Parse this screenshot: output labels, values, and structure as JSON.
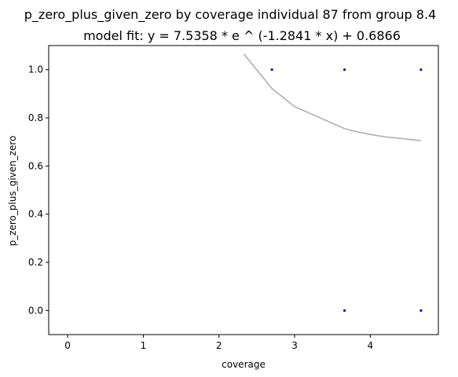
{
  "chart_data": {
    "type": "scatter",
    "title": "p_zero_plus_given_zero by coverage individual 87 from group 8.4",
    "subtitle": "model fit: y = 7.5358 * e ^ (-1.2841 * x) + 0.6866",
    "xlabel": "coverage",
    "ylabel": "p_zero_plus_given_zero",
    "xlim": [
      -0.25,
      4.9
    ],
    "ylim": [
      -0.1,
      1.1
    ],
    "xticks": [
      0,
      1,
      2,
      3,
      4
    ],
    "yticks": [
      0.0,
      0.2,
      0.4,
      0.6,
      0.8,
      1.0
    ],
    "grid": false,
    "points": {
      "color": "#0000cc",
      "x": [
        2.7,
        3.66,
        4.67,
        3.66,
        4.67
      ],
      "y": [
        1.0,
        1.0,
        1.0,
        0.0,
        0.0
      ]
    },
    "fit": {
      "color": "#b0b0b0",
      "a": 7.5358,
      "b": -1.2841,
      "c": 0.6866,
      "x_samples": [
        2.33,
        2.7,
        3.0,
        3.66,
        3.8,
        4.0,
        4.2,
        4.67
      ]
    }
  }
}
